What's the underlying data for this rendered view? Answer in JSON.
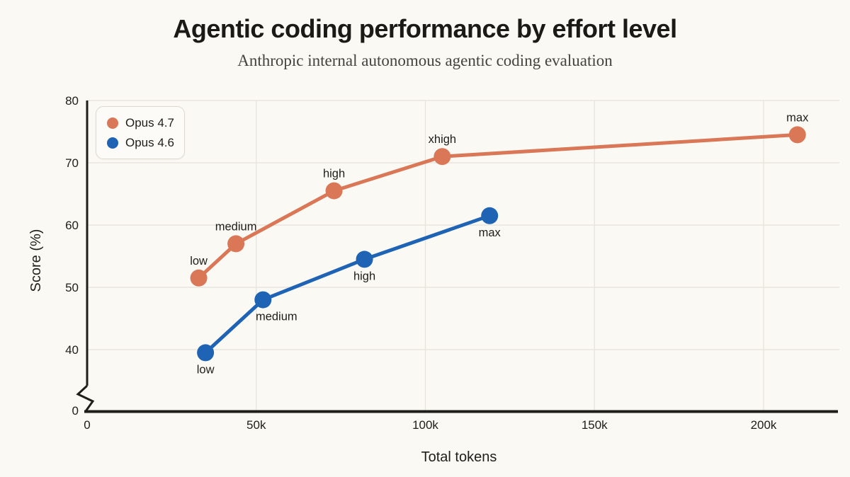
{
  "header": {
    "title": "Agentic coding performance by effort level",
    "subtitle": "Anthropic internal autonomous agentic coding evaluation"
  },
  "colors": {
    "background": "#faf9f4",
    "grid": "#e8e5dd",
    "axis": "#1f1e1a",
    "text": "#1f1e1a",
    "subtitle_text": "#45433d",
    "opus_4_7": "#d97757",
    "opus_4_6": "#1f63b5"
  },
  "chart_data": {
    "type": "line",
    "title": "Agentic coding performance by effort level",
    "subtitle": "Anthropic internal autonomous agentic coding evaluation",
    "xlabel": "Total tokens",
    "ylabel": "Score (%)",
    "x_values_in_thousands": true,
    "xlim": [
      0,
      222
    ],
    "ylim": [
      40,
      80
    ],
    "axis_break_above_zero": true,
    "grid": true,
    "legend_position": "top-left",
    "x_ticks": [
      {
        "value": 0,
        "label": "0"
      },
      {
        "value": 50,
        "label": "50k"
      },
      {
        "value": 100,
        "label": "100k"
      },
      {
        "value": 150,
        "label": "150k"
      },
      {
        "value": 200,
        "label": "200k"
      }
    ],
    "y_ticks": [
      {
        "value": 40,
        "label": "40"
      },
      {
        "value": 50,
        "label": "50"
      },
      {
        "value": 60,
        "label": "60"
      },
      {
        "value": 70,
        "label": "70"
      },
      {
        "value": 80,
        "label": "80"
      }
    ],
    "y_origin_tick_label": "0",
    "series": [
      {
        "name": "Opus 4.7",
        "color": "#d97757",
        "points": [
          {
            "x": 33,
            "y": 51.5,
            "label": "low",
            "label_pos": "above"
          },
          {
            "x": 44,
            "y": 57,
            "label": "medium",
            "label_pos": "above"
          },
          {
            "x": 73,
            "y": 65.5,
            "label": "high",
            "label_pos": "above"
          },
          {
            "x": 105,
            "y": 71,
            "label": "xhigh",
            "label_pos": "above"
          },
          {
            "x": 210,
            "y": 74.5,
            "label": "max",
            "label_pos": "above"
          }
        ]
      },
      {
        "name": "Opus 4.6",
        "color": "#1f63b5",
        "points": [
          {
            "x": 35,
            "y": 39.5,
            "label": "low",
            "label_pos": "below"
          },
          {
            "x": 52,
            "y": 48,
            "label": "medium",
            "label_pos": "below",
            "label_dx": 19
          },
          {
            "x": 82,
            "y": 54.5,
            "label": "high",
            "label_pos": "below"
          },
          {
            "x": 119,
            "y": 61.5,
            "label": "max",
            "label_pos": "below"
          }
        ]
      }
    ]
  }
}
